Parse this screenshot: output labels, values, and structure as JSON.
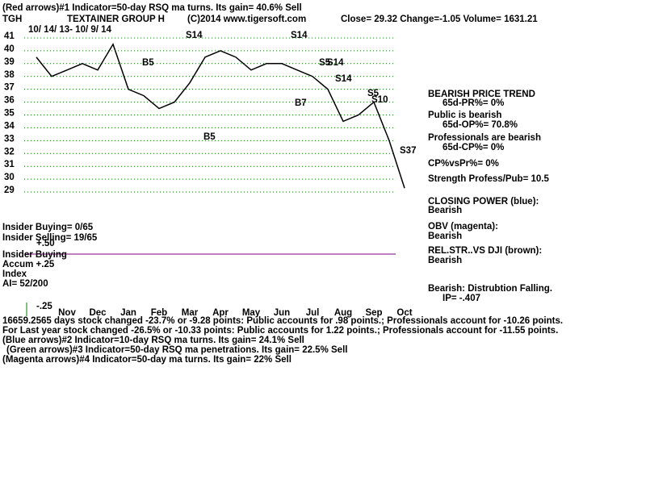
{
  "chart_data": {
    "type": "line",
    "title": "(Red arrows)#1 Indicator=50-day RSQ ma turns. Its gain= 40.6% Sell",
    "ticker": "TGH",
    "company": "TEXTAINER GROUP H",
    "copyright": "(C)2014 www.tigersoft.com",
    "quote": "Close=  29.32  Change=-1.05 Volume= 1631.21",
    "date_range": "10/ 14/ 13- 10/ 9/ 14",
    "categories": [
      null,
      null,
      "Nov",
      null,
      "Dec",
      null,
      "Jan",
      null,
      "Feb",
      null,
      "Mar",
      null,
      "Apr",
      null,
      "May",
      null,
      "Jun",
      null,
      "Jul",
      null,
      "Aug",
      null,
      "Sep",
      null,
      "Oct"
    ],
    "series": [
      {
        "name": "Close",
        "color": "#000000",
        "values": [
          39.5,
          38.0,
          38.5,
          39.0,
          38.5,
          40.5,
          37.0,
          36.5,
          35.5,
          36.0,
          37.5,
          39.5,
          40.0,
          39.5,
          38.5,
          39.0,
          39.0,
          38.5,
          38.0,
          37.0,
          34.5,
          35.0,
          36.0,
          33.0,
          29.3
        ]
      }
    ],
    "ylim": [
      28.5,
      41.5
    ],
    "yticks": [
      29,
      30,
      31,
      32,
      33,
      34,
      35,
      36,
      37,
      38,
      39,
      40,
      41
    ],
    "grid": true,
    "grid_color": "#008000",
    "signals": [
      "S14",
      "S14",
      "B5",
      "S5",
      "S14",
      "S14",
      "S5",
      "S10",
      "S37",
      "B5",
      "B7"
    ],
    "right_panel": [
      "BEARISH PRICE TREND",
      "65d-PR%= 0%",
      "Public is bearish",
      "65d-OP%= 70.8%",
      "Professionals are bearish",
      "65d-CP%= 0%",
      "CP%vsPr%=  0%",
      "Strength Profess/Pub= 10.5",
      "CLOSING POWER (blue):",
      "Bearish",
      "OBV (magenta):",
      "Bearish",
      "REL.STR..VS DJI (brown):",
      "Bearish",
      "Bearish: Distrubtion Falling.",
      "IP= -.407"
    ],
    "left_panel": [
      "Insider Buying= 0/65",
      "Insider Selling= 19/65",
      "+.50",
      "Insider Buying",
      "Accum  +.25",
      "Index",
      "AI= 52/200",
      "-.25"
    ],
    "footer": [
      "16659.2565 days stock changed -23.7% or -9.28 points:  Public accounts for  .98 points.;  Professionals account for -10.26 points.",
      "For Last year stock changed -26.5% or -10.33 points:  Public accounts for  1.22 points.;  Professionals account for -11.55 points.",
      "(Blue arrows)#2 Indicator=10-day RSQ ma turns. Its gain= 24.1% Sell",
      "(Green arrows)#3 Indicator=50-day RSQ ma penetrations. Its gain= 22.5% Sell",
      "(Magenta arrows)#4 Indicator=50-day ma turns. Its gain= 22% Sell"
    ]
  }
}
